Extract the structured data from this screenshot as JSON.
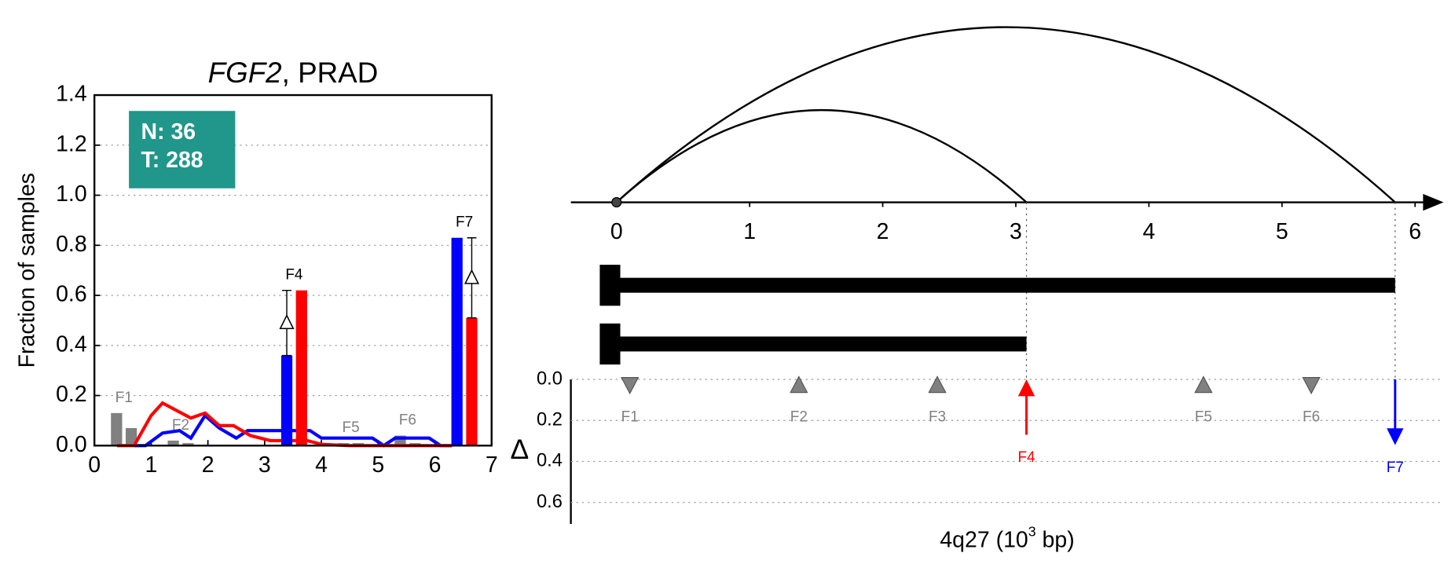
{
  "chart_data": [
    {
      "type": "line",
      "title_gene": "FGF2",
      "title_rest": ", PRAD",
      "ylabel": "Fraction of samples",
      "annotation": [
        "N: 36",
        "T: 288"
      ],
      "annotation_color": "#21968a",
      "xlim": [
        0,
        7
      ],
      "xticks": [
        0,
        1,
        2,
        3,
        4,
        5,
        6,
        7
      ],
      "ylim": [
        0,
        1.4
      ],
      "yticks": [
        {
          "value": 0,
          "label": "0.0"
        },
        {
          "value": 0.2,
          "label": "0.2"
        },
        {
          "value": 0.4,
          "label": "0.4"
        },
        {
          "value": 0.6,
          "label": "0.6"
        },
        {
          "value": 0.8,
          "label": "0.8"
        },
        {
          "value": 1.0,
          "label": "1.0"
        },
        {
          "value": 1.2,
          "label": "1.2"
        },
        {
          "value": 1.4,
          "label": "1.4"
        }
      ],
      "grid": true,
      "series": [
        {
          "color": "#0000ff",
          "x": [
            0.7,
            0.9,
            1.2,
            1.5,
            1.7,
            1.95,
            2.2,
            2.5,
            2.7,
            3.1,
            3.5,
            3.8,
            4.0,
            4.5,
            4.9,
            5.1,
            5.3,
            5.9,
            6.1,
            6.3
          ],
          "values": [
            0,
            0,
            0.05,
            0.06,
            0.03,
            0.12,
            0.07,
            0.03,
            0.06,
            0.06,
            0.06,
            0.06,
            0.03,
            0.03,
            0.03,
            0,
            0.03,
            0.03,
            0,
            0
          ]
        },
        {
          "color": "#ff0000",
          "x": [
            0.4,
            0.7,
            1.0,
            1.2,
            1.45,
            1.7,
            1.95,
            2.2,
            2.45,
            2.75,
            3.1,
            3.4,
            3.75,
            4.0,
            4.5,
            5.0,
            5.5,
            6.0,
            6.3
          ],
          "values": [
            0,
            0,
            0.12,
            0.17,
            0.14,
            0.11,
            0.13,
            0.08,
            0.08,
            0.04,
            0.02,
            0.02,
            0.02,
            0.005,
            0,
            0,
            0,
            0,
            0
          ]
        }
      ],
      "muted_color": "#808080",
      "features": [
        {
          "label": "F1",
          "x": 0.52,
          "normal": 0.13,
          "tumor": 0.07,
          "significant": false
        },
        {
          "label": "F2",
          "x": 1.52,
          "normal": 0.02,
          "tumor": 0.01,
          "significant": false
        },
        {
          "label": "F4",
          "x": 3.52,
          "normal": 0.36,
          "tumor": 0.62,
          "significant": true
        },
        {
          "label": "F5",
          "x": 4.52,
          "normal": 0.01,
          "tumor": 0.01,
          "significant": false
        },
        {
          "label": "F6",
          "x": 5.52,
          "normal": 0.04,
          "tumor": 0.01,
          "significant": false
        },
        {
          "label": "F7",
          "x": 6.52,
          "normal": 0.83,
          "tumor": 0.51,
          "significant": true
        }
      ]
    },
    {
      "type": "feature-map",
      "xlim": [
        0,
        6.2
      ],
      "xticks": [
        0,
        1,
        2,
        3,
        4,
        5,
        6
      ],
      "junctions": [
        {
          "start": 0,
          "end": 3.08
        },
        {
          "start": 0,
          "end": 5.85
        }
      ],
      "transcripts": [
        {
          "start": 0,
          "end": 5.85
        },
        {
          "start": 0,
          "end": 3.08
        }
      ],
      "ylim": [
        0,
        0.7
      ],
      "yticks": [
        {
          "value": 0,
          "label": "0.0"
        },
        {
          "value": 0.2,
          "label": "0.2"
        },
        {
          "value": 0.4,
          "label": "0.4"
        },
        {
          "value": 0.6,
          "label": "0.6"
        }
      ],
      "ylabel": "Δ",
      "xlabel_prefix": "4q27 (10",
      "xlabel_exponent": "3",
      "xlabel_suffix": " bp)",
      "features": [
        {
          "label": "F1",
          "position": 0.1,
          "direction": "down",
          "color": "#808080"
        },
        {
          "label": "F2",
          "position": 1.37,
          "direction": "up",
          "color": "#808080"
        },
        {
          "label": "F3",
          "position": 2.41,
          "direction": "up",
          "color": "#808080"
        },
        {
          "label": "F4",
          "position": 3.08,
          "direction": "up",
          "color": "#ff0000",
          "delta": 0.27
        },
        {
          "label": "F5",
          "position": 4.41,
          "direction": "up",
          "color": "#808080"
        },
        {
          "label": "F6",
          "position": 5.22,
          "direction": "down",
          "color": "#808080"
        },
        {
          "label": "F7",
          "position": 5.85,
          "direction": "down",
          "color": "#0000ff",
          "delta": 0.32
        }
      ]
    }
  ]
}
